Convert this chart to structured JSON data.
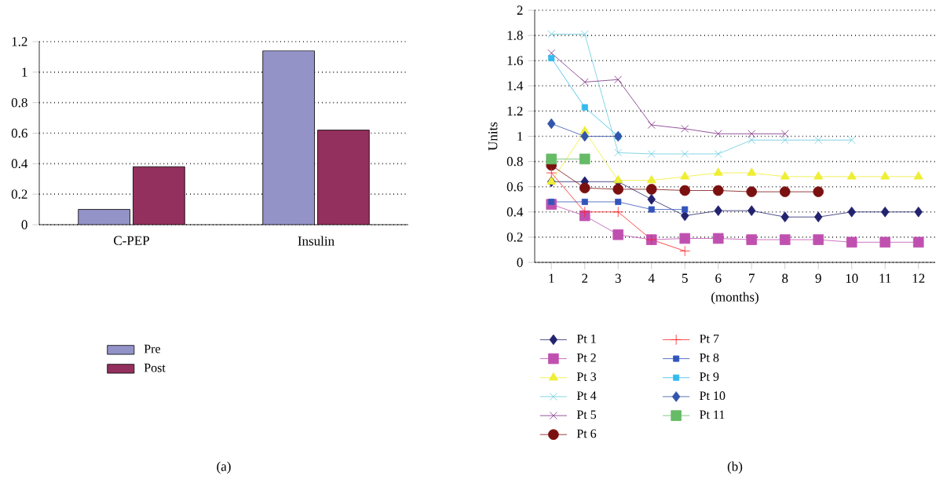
{
  "chart_data": [
    {
      "type": "bar",
      "categories": [
        "C-PEP",
        "Insulin"
      ],
      "series": [
        {
          "name": "Pre",
          "color": "#9393c8",
          "values": [
            0.1,
            1.14
          ]
        },
        {
          "name": "Post",
          "color": "#93305e",
          "values": [
            0.38,
            0.62
          ]
        }
      ],
      "ylim": [
        0,
        1.2
      ],
      "yticks": [
        0,
        0.2,
        0.4,
        0.6,
        0.8,
        1,
        1.2
      ],
      "grid": "y",
      "legend": "bottom",
      "annotations": [
        "(a)"
      ]
    },
    {
      "type": "line",
      "x": [
        1,
        2,
        3,
        4,
        5,
        6,
        7,
        8,
        9,
        10,
        11,
        12
      ],
      "xlabel": "(months)",
      "ylabel": "Units",
      "series": [
        {
          "name": "Pt 1",
          "color": "#22226e",
          "marker": "diamond",
          "values": [
            0.64,
            0.64,
            0.64,
            0.5,
            0.37,
            0.41,
            0.41,
            0.36,
            0.36,
            0.4,
            0.4,
            0.4
          ]
        },
        {
          "name": "Pt 2",
          "color": "#c050b0",
          "marker": "square",
          "values": [
            0.46,
            0.37,
            0.22,
            0.18,
            0.19,
            0.19,
            0.18,
            0.18,
            0.18,
            0.16,
            0.16,
            0.16
          ]
        },
        {
          "name": "Pt 3",
          "color": "#eeee33",
          "marker": "triangle",
          "values": [
            0.64,
            1.04,
            0.65,
            0.65,
            0.68,
            0.71,
            0.71,
            0.68,
            0.68,
            0.68,
            0.68,
            0.68
          ]
        },
        {
          "name": "Pt 4",
          "color": "#66ccdd",
          "marker": "cross",
          "values": [
            1.81,
            1.81,
            0.87,
            0.86,
            0.86,
            0.86,
            0.97,
            0.97,
            0.97,
            0.97,
            null,
            null
          ]
        },
        {
          "name": "Pt 5",
          "color": "#7b2a82",
          "marker": "cross",
          "values": [
            1.66,
            1.43,
            1.45,
            1.09,
            1.06,
            1.02,
            1.02,
            1.02,
            null,
            null,
            null,
            null
          ]
        },
        {
          "name": "Pt 6",
          "color": "#7a1010",
          "marker": "circle",
          "values": [
            0.77,
            0.59,
            0.58,
            0.58,
            0.57,
            0.57,
            0.56,
            0.56,
            0.56,
            null,
            null,
            null
          ]
        },
        {
          "name": "Pt 7",
          "color": "#ff2020",
          "marker": "plus",
          "values": [
            0.71,
            0.4,
            0.4,
            0.18,
            0.09,
            null,
            null,
            null,
            null,
            null,
            null,
            null
          ]
        },
        {
          "name": "Pt 8",
          "color": "#3355bb",
          "marker": "square",
          "values": [
            0.48,
            0.48,
            0.48,
            0.42,
            0.42,
            null,
            null,
            null,
            null,
            null,
            null,
            null
          ]
        },
        {
          "name": "Pt 9",
          "color": "#33bbee",
          "marker": "square",
          "values": [
            1.62,
            1.23,
            1.0,
            null,
            null,
            null,
            null,
            null,
            null,
            null,
            null,
            null
          ]
        },
        {
          "name": "Pt 10",
          "color": "#3355aa",
          "marker": "diamond",
          "values": [
            1.1,
            1.0,
            1.0,
            null,
            null,
            null,
            null,
            null,
            null,
            null,
            null,
            null
          ]
        },
        {
          "name": "Pt 11",
          "color": "#66bb66",
          "marker": "square",
          "values": [
            0.82,
            0.82,
            null,
            null,
            null,
            null,
            null,
            null,
            null,
            null,
            null,
            null
          ]
        }
      ],
      "xlim": [
        0.5,
        12.5
      ],
      "xticks": [
        1,
        2,
        3,
        4,
        5,
        6,
        7,
        8,
        9,
        10,
        11,
        12
      ],
      "ylim": [
        0,
        2
      ],
      "yticks": [
        0,
        0.2,
        0.4,
        0.6,
        0.8,
        1,
        1.2,
        1.4,
        1.6,
        1.8,
        2
      ],
      "grid": "y",
      "legend": "bottom",
      "annotations": [
        "(b)"
      ]
    }
  ]
}
